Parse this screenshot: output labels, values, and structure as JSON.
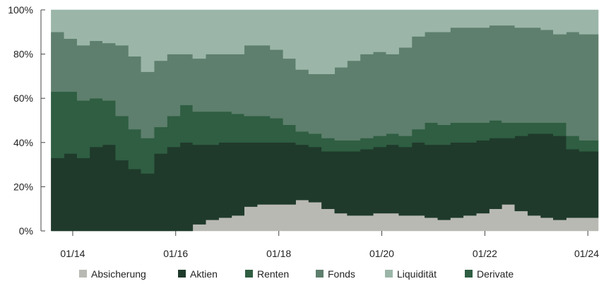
{
  "chart_data": {
    "type": "area",
    "stacked": true,
    "normalized_to_percent": true,
    "title": "",
    "xlabel": "",
    "ylabel": "",
    "ylim": [
      0,
      100
    ],
    "y_ticks": [
      {
        "value": 0,
        "label": "0%"
      },
      {
        "value": 20,
        "label": "20%"
      },
      {
        "value": 40,
        "label": "40%"
      },
      {
        "value": 60,
        "label": "60%"
      },
      {
        "value": 80,
        "label": "80%"
      },
      {
        "value": 100,
        "label": "100%"
      }
    ],
    "x_ticks": [
      {
        "value": "2014-01",
        "label": "01/14"
      },
      {
        "value": "2016-01",
        "label": "01/16"
      },
      {
        "value": "2018-01",
        "label": "01/18"
      },
      {
        "value": "2020-01",
        "label": "01/20"
      },
      {
        "value": "2022-01",
        "label": "01/22"
      },
      {
        "value": "2024-01",
        "label": "01/24"
      }
    ],
    "x": [
      "2013-08",
      "2013-11",
      "2014-02",
      "2014-05",
      "2014-08",
      "2014-11",
      "2015-02",
      "2015-05",
      "2015-08",
      "2015-11",
      "2016-02",
      "2016-05",
      "2016-08",
      "2016-11",
      "2017-02",
      "2017-05",
      "2017-08",
      "2017-11",
      "2018-02",
      "2018-05",
      "2018-08",
      "2018-11",
      "2019-02",
      "2019-05",
      "2019-08",
      "2019-11",
      "2020-02",
      "2020-05",
      "2020-08",
      "2020-11",
      "2021-02",
      "2021-05",
      "2021-08",
      "2021-11",
      "2022-02",
      "2022-05",
      "2022-08",
      "2022-11",
      "2023-02",
      "2023-05",
      "2023-08",
      "2023-11",
      "2024-02"
    ],
    "grid": false,
    "legend_position": "bottom",
    "series": [
      {
        "name": "Absicherung",
        "color": "#b9b9b3",
        "values": [
          0,
          0,
          0,
          0,
          0,
          0,
          0,
          0,
          0,
          0,
          0,
          3,
          5,
          6,
          7,
          11,
          12,
          12,
          12,
          14,
          13,
          10,
          8,
          7,
          7,
          8,
          8,
          7,
          7,
          6,
          5,
          6,
          7,
          8,
          10,
          12,
          9,
          7,
          6,
          5,
          6,
          6,
          6
        ]
      },
      {
        "name": "Aktien",
        "color": "#1f3a2b",
        "values": [
          33,
          35,
          33,
          38,
          39,
          32,
          28,
          26,
          35,
          38,
          40,
          36,
          34,
          34,
          33,
          29,
          28,
          28,
          28,
          25,
          25,
          26,
          28,
          29,
          30,
          30,
          31,
          31,
          33,
          33,
          34,
          34,
          33,
          33,
          32,
          30,
          34,
          37,
          38,
          38,
          31,
          30,
          30
        ]
      },
      {
        "name": "Renten",
        "color": "#2f5e42",
        "values": [
          30,
          28,
          26,
          22,
          20,
          20,
          18,
          16,
          12,
          14,
          17,
          15,
          15,
          14,
          13,
          12,
          12,
          11,
          8,
          6,
          6,
          6,
          5,
          5,
          5,
          5,
          5,
          5,
          6,
          10,
          9,
          9,
          9,
          8,
          8,
          7,
          6,
          5,
          5,
          6,
          6,
          5,
          5
        ]
      },
      {
        "name": "Fonds",
        "color": "#5e7f6d",
        "values": [
          27,
          24,
          25,
          26,
          26,
          32,
          33,
          30,
          30,
          28,
          23,
          24,
          26,
          26,
          27,
          32,
          32,
          31,
          30,
          28,
          27,
          29,
          33,
          36,
          38,
          38,
          36,
          40,
          42,
          41,
          42,
          43,
          43,
          43,
          43,
          44,
          43,
          43,
          42,
          40,
          47,
          48,
          48
        ]
      },
      {
        "name": "Liquidität",
        "color": "#9bb6a8",
        "values": [
          10,
          13,
          16,
          14,
          15,
          16,
          21,
          28,
          23,
          20,
          20,
          22,
          20,
          20,
          20,
          16,
          16,
          18,
          22,
          27,
          29,
          29,
          26,
          23,
          20,
          19,
          20,
          17,
          12,
          10,
          10,
          8,
          8,
          8,
          7,
          7,
          8,
          8,
          9,
          11,
          10,
          11,
          11
        ]
      },
      {
        "name": "Derivate",
        "color": "#2f5e42",
        "values": [
          0,
          0,
          0,
          0,
          0,
          0,
          0,
          0,
          0,
          0,
          0,
          0,
          0,
          0,
          0,
          0,
          0,
          0,
          0,
          0,
          0,
          0,
          0,
          0,
          0,
          0,
          0,
          0,
          0,
          0,
          0,
          0,
          0,
          0,
          0,
          0,
          0,
          0,
          0,
          0,
          0,
          0,
          0
        ]
      }
    ]
  }
}
